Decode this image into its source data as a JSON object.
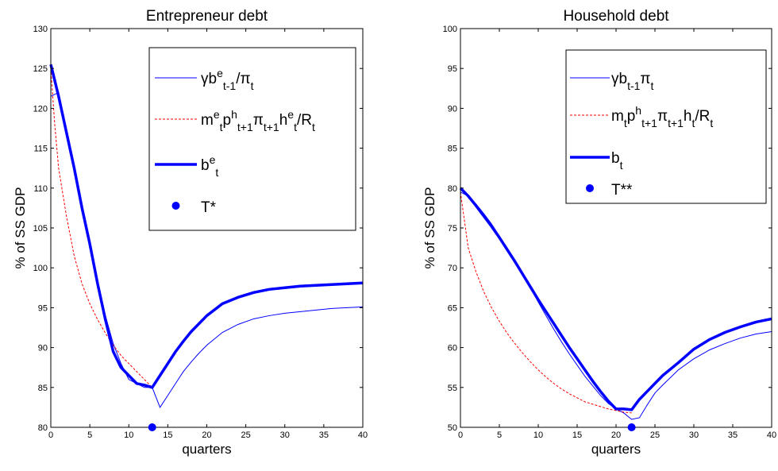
{
  "chart_data": [
    {
      "type": "line",
      "title": "Entrepreneur debt",
      "xlabel": "quarters",
      "ylabel": "% of SS GDP",
      "xlim": [
        0,
        40
      ],
      "ylim": [
        80,
        130
      ],
      "xticks": [
        0,
        5,
        10,
        15,
        20,
        25,
        30,
        35,
        40
      ],
      "yticks": [
        80,
        85,
        90,
        95,
        100,
        105,
        110,
        115,
        120,
        125,
        130
      ],
      "grid": false,
      "legend_position": "top-right",
      "series": [
        {
          "legend": [
            [
              "γ",
              ""
            ],
            [
              "b",
              "sup:e"
            ],
            [
              "",
              "sub:t-1"
            ],
            [
              "/π",
              ""
            ],
            [
              "",
              "sub:t"
            ]
          ],
          "style": "thin-solid",
          "color": "#0000ff",
          "x": [
            0,
            1,
            2,
            3,
            4,
            5,
            6,
            7,
            8,
            9,
            10,
            11,
            12,
            13,
            14,
            15,
            16,
            17,
            18,
            19,
            20,
            22,
            24,
            26,
            28,
            30,
            32,
            34,
            36,
            38,
            40
          ],
          "y": [
            121.5,
            122.0,
            117.0,
            112.0,
            107.0,
            102.5,
            98.0,
            94.0,
            90.5,
            88.0,
            86.0,
            85.5,
            85.0,
            85.0,
            82.5,
            84.0,
            85.5,
            87.0,
            88.2,
            89.3,
            90.3,
            91.9,
            92.9,
            93.6,
            94.0,
            94.3,
            94.5,
            94.7,
            94.9,
            95.0,
            95.1
          ]
        },
        {
          "legend": [
            [
              "m",
              ""
            ],
            [
              "",
              "sup:e"
            ],
            [
              "",
              "sub:t"
            ],
            [
              "p",
              ""
            ],
            [
              "",
              "sup:h"
            ],
            [
              "",
              "sub:t+1"
            ],
            [
              "π",
              ""
            ],
            [
              "",
              "sub:t+1"
            ],
            [
              "h",
              ""
            ],
            [
              "",
              "sup:e"
            ],
            [
              "",
              "sub:t"
            ],
            [
              "/R",
              ""
            ],
            [
              "",
              "sub:t"
            ]
          ],
          "style": "dashed",
          "color": "#ff0000",
          "x": [
            0,
            0.5,
            1,
            2,
            3,
            4,
            5,
            6,
            7,
            8,
            9,
            10,
            11,
            12,
            13
          ],
          "y": [
            125.0,
            118.0,
            112.5,
            106.5,
            101.5,
            98.0,
            95.5,
            93.5,
            91.8,
            90.3,
            89.0,
            88.0,
            87.0,
            86.0,
            85.0
          ]
        },
        {
          "legend": [
            [
              "b",
              ""
            ],
            [
              "",
              "sup:e"
            ],
            [
              "",
              "sub:t"
            ]
          ],
          "style": "thick-solid",
          "color": "#0000ff",
          "x": [
            0,
            1,
            2,
            3,
            4,
            5,
            6,
            7,
            8,
            9,
            10,
            11,
            12,
            13,
            14,
            15,
            16,
            17,
            18,
            19,
            20,
            22,
            24,
            26,
            28,
            30,
            32,
            34,
            36,
            38,
            40
          ],
          "y": [
            125.5,
            121.5,
            117.0,
            112.5,
            107.5,
            103.0,
            98.0,
            93.5,
            89.5,
            87.5,
            86.5,
            85.5,
            85.3,
            85.0,
            86.5,
            88.0,
            89.5,
            90.8,
            92.0,
            93.0,
            94.0,
            95.5,
            96.3,
            96.9,
            97.3,
            97.5,
            97.7,
            97.8,
            97.9,
            98.0,
            98.1
          ]
        },
        {
          "legend": [
            [
              "T*",
              ""
            ]
          ],
          "style": "marker",
          "color": "#0000ff",
          "x": [
            13
          ],
          "y": [
            80
          ]
        }
      ]
    },
    {
      "type": "line",
      "title": "Household debt",
      "xlabel": "quarters",
      "ylabel": "% of SS GDP",
      "xlim": [
        0,
        40
      ],
      "ylim": [
        50,
        100
      ],
      "xticks": [
        0,
        5,
        10,
        15,
        20,
        25,
        30,
        35,
        40
      ],
      "yticks": [
        50,
        55,
        60,
        65,
        70,
        75,
        80,
        85,
        90,
        95,
        100
      ],
      "grid": false,
      "legend_position": "top-right",
      "series": [
        {
          "legend": [
            [
              "γb",
              ""
            ],
            [
              "",
              "sub:t-1"
            ],
            [
              "π",
              ""
            ],
            [
              "",
              "sub:t"
            ]
          ],
          "style": "thin-solid",
          "color": "#0000ff",
          "x": [
            0,
            1,
            2,
            3,
            4,
            5,
            6,
            7,
            8,
            9,
            10,
            11,
            12,
            13,
            14,
            15,
            16,
            17,
            18,
            19,
            20,
            21,
            22,
            23,
            24,
            25,
            26,
            28,
            30,
            32,
            34,
            36,
            38,
            40
          ],
          "y": [
            79.5,
            79.0,
            78.0,
            76.8,
            75.5,
            74.0,
            72.5,
            71.0,
            69.3,
            67.5,
            65.7,
            64.0,
            62.3,
            60.7,
            59.2,
            57.8,
            56.4,
            55.2,
            54.0,
            53.0,
            52.3,
            51.8,
            51.0,
            51.2,
            52.8,
            54.3,
            55.3,
            57.2,
            58.6,
            59.7,
            60.5,
            61.2,
            61.7,
            62.0
          ]
        },
        {
          "legend": [
            [
              "m",
              ""
            ],
            [
              "",
              "sub:t"
            ],
            [
              "p",
              ""
            ],
            [
              "",
              "sup:h"
            ],
            [
              "",
              "sub:t+1"
            ],
            [
              "π",
              ""
            ],
            [
              "",
              "sub:t+1"
            ],
            [
              "h",
              ""
            ],
            [
              "",
              "sub:t"
            ],
            [
              "/R",
              ""
            ],
            [
              "",
              "sub:t"
            ]
          ],
          "style": "dashed",
          "color": "#ff0000",
          "x": [
            0,
            0.5,
            1,
            2,
            3,
            4,
            5,
            6,
            7,
            8,
            9,
            10,
            11,
            12,
            13,
            14,
            15,
            16,
            17,
            18,
            19,
            20,
            21,
            22
          ],
          "y": [
            79.5,
            76.0,
            72.5,
            69.5,
            67.0,
            65.0,
            63.3,
            61.8,
            60.5,
            59.3,
            58.2,
            57.2,
            56.3,
            55.5,
            54.8,
            54.2,
            53.7,
            53.2,
            52.9,
            52.6,
            52.3,
            52.1,
            51.9,
            51.8
          ]
        },
        {
          "legend": [
            [
              "b",
              ""
            ],
            [
              "",
              "sub:t"
            ]
          ],
          "style": "thick-solid",
          "color": "#0000ff",
          "x": [
            0,
            1,
            2,
            3,
            4,
            5,
            6,
            7,
            8,
            9,
            10,
            11,
            12,
            13,
            14,
            15,
            16,
            17,
            18,
            19,
            20,
            21,
            22,
            23,
            24,
            25,
            26,
            28,
            30,
            32,
            34,
            36,
            38,
            40
          ],
          "y": [
            80.0,
            79.0,
            77.8,
            76.5,
            75.2,
            73.8,
            72.3,
            70.8,
            69.2,
            67.6,
            66.0,
            64.5,
            63.0,
            61.5,
            60.0,
            58.6,
            57.2,
            55.8,
            54.5,
            53.3,
            52.3,
            52.3,
            52.2,
            53.5,
            54.5,
            55.5,
            56.5,
            58.1,
            59.8,
            61.0,
            61.9,
            62.6,
            63.2,
            63.6
          ]
        },
        {
          "legend": [
            [
              "T**",
              ""
            ]
          ],
          "style": "marker",
          "color": "#0000ff",
          "x": [
            22
          ],
          "y": [
            50
          ]
        }
      ]
    }
  ]
}
